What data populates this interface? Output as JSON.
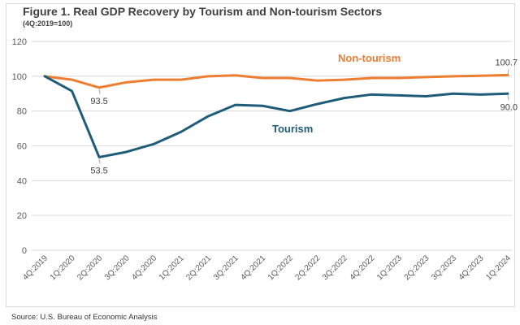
{
  "chart_data": {
    "type": "line",
    "title": "Figure 1. Real GDP Recovery by Tourism and Non-tourism Sectors",
    "subtitle": "(4Q:2019=100)",
    "xlabel": "",
    "ylabel": "",
    "ylim": [
      0,
      120
    ],
    "yticks": [
      "0",
      "20",
      "40",
      "60",
      "80",
      "100",
      "120"
    ],
    "grid": true,
    "legend": "inline-labels",
    "categories": [
      "4Q:2019",
      "1Q:2020",
      "2Q:2020",
      "3Q:2020",
      "4Q:2020",
      "1Q:2021",
      "2Q:2021",
      "3Q:2021",
      "4Q:2021",
      "1Q:2022",
      "2Q:2022",
      "3Q:2022",
      "4Q:2022",
      "1Q:2023",
      "2Q:2023",
      "3Q:2023",
      "4Q:2023",
      "1Q:2024"
    ],
    "series": [
      {
        "name": "Non-tourism",
        "color": "#ED7D31",
        "values": [
          100,
          98,
          93.5,
          96.5,
          98,
          98,
          100,
          100.5,
          99,
          99,
          97.5,
          98,
          99,
          99,
          99.5,
          100,
          100.3,
          100.7
        ],
        "annotations": [
          {
            "index": 2,
            "text": "93.5"
          },
          {
            "index": 17,
            "text": "100.7"
          }
        ]
      },
      {
        "name": "Tourism",
        "color": "#1F5C7A",
        "values": [
          100,
          91.5,
          53.5,
          56.5,
          61,
          68,
          77,
          83.5,
          83,
          80,
          84,
          87.5,
          89.5,
          89,
          88.5,
          90,
          89.5,
          90.0
        ],
        "annotations": [
          {
            "index": 2,
            "text": "53.5"
          },
          {
            "index": 17,
            "text": "90.0"
          }
        ]
      }
    ]
  },
  "footer": {
    "source": "Source: U.S. Bureau of Economic Analysis"
  }
}
